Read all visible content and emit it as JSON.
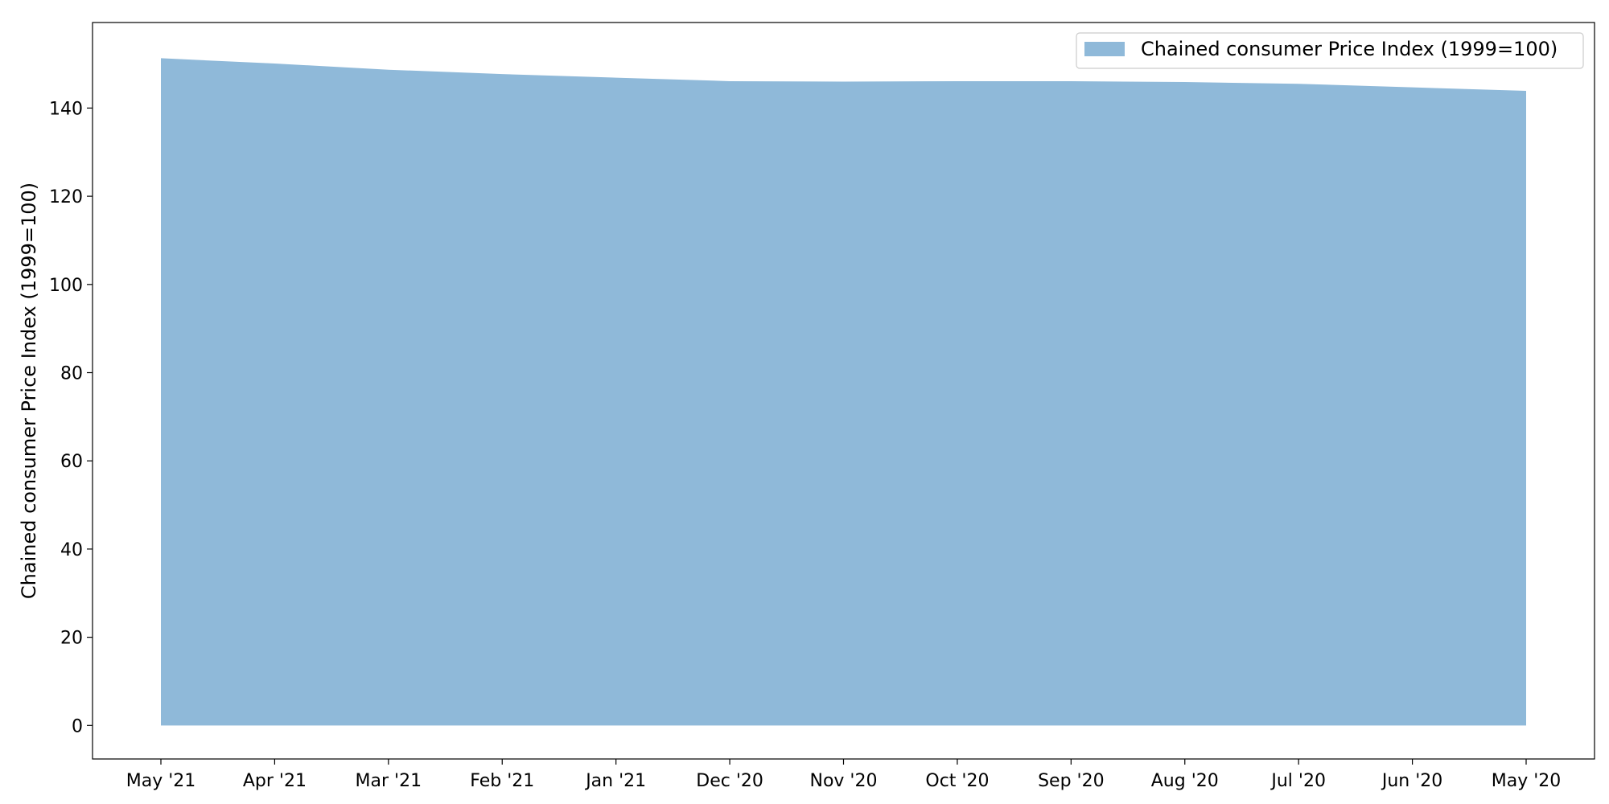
{
  "chart_data": {
    "type": "area",
    "title": "",
    "xlabel": "",
    "ylabel": "Chained consumer Price Index (1999=100)",
    "categories": [
      "May '21",
      "Apr '21",
      "Mar '21",
      "Feb '21",
      "Jan '21",
      "Dec '20",
      "Nov '20",
      "Oct '20",
      "Sep '20",
      "Aug '20",
      "Jul '20",
      "Jun '20",
      "May '20"
    ],
    "series": [
      {
        "name": "Chained consumer Price Index (1999=100)",
        "values": [
          151.3,
          150.1,
          148.7,
          147.7,
          146.9,
          146.1,
          146.0,
          146.1,
          146.1,
          145.9,
          145.5,
          144.7,
          143.9
        ],
        "color": "#8fb9d9"
      }
    ],
    "ylim": [
      -7.6,
      159.4
    ],
    "yticks": [
      0,
      20,
      40,
      60,
      80,
      100,
      120,
      140
    ],
    "grid": false,
    "legend_position": "top-right"
  }
}
